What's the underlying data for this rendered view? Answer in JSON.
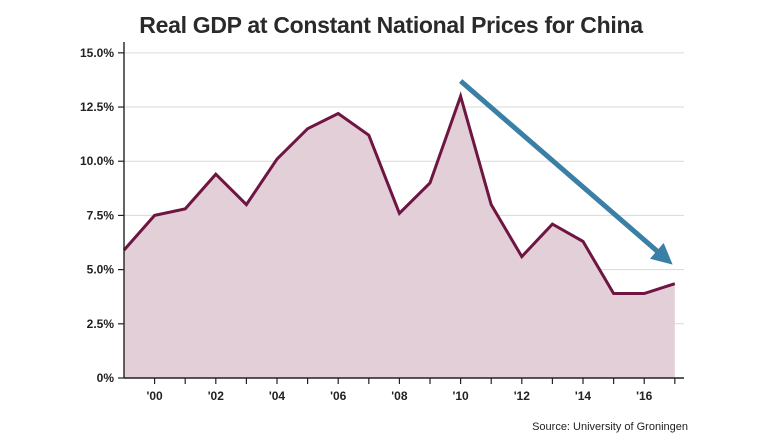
{
  "chart_data": {
    "type": "area",
    "title": "Real GDP at Constant National Prices for China",
    "xlabel": "",
    "ylabel": "",
    "x": [
      1999,
      2000,
      2001,
      2002,
      2003,
      2004,
      2005,
      2006,
      2007,
      2008,
      2009,
      2010,
      2011,
      2012,
      2013,
      2014,
      2015,
      2016,
      2017
    ],
    "series": [
      {
        "values": [
          5.9,
          7.5,
          7.8,
          9.4,
          8.0,
          10.1,
          11.5,
          12.2,
          11.2,
          7.6,
          9.0,
          13.0,
          8.0,
          5.6,
          7.1,
          6.3,
          3.9,
          3.9,
          4.35
        ]
      }
    ],
    "xlim": [
      1999,
      2017.3
    ],
    "ylim": [
      0,
      15.5
    ],
    "yticks": [
      0,
      2.5,
      5.0,
      7.5,
      10.0,
      12.5,
      15.0
    ],
    "ytick_labels": [
      "0%",
      "2.5%",
      "5.0%",
      "7.5%",
      "10.0%",
      "12.5%",
      "15.0%"
    ],
    "xticks": [
      2000,
      2002,
      2004,
      2006,
      2008,
      2010,
      2012,
      2014,
      2016
    ],
    "xtick_labels": [
      "'00",
      "'02",
      "'04",
      "'06",
      "'08",
      "'10",
      "'12",
      "'14",
      "'16"
    ],
    "grid": "horizontal",
    "annotations": [
      {
        "type": "arrow",
        "from": [
          2010,
          13.7
        ],
        "to": [
          2017.1,
          5.1
        ],
        "color": "#3a7fa6"
      }
    ],
    "colors": {
      "line": "#6e1542",
      "fill": "#e3cfd7",
      "grid": "#d9d9d9",
      "arrow": "#3a7fa6"
    },
    "source": "Source: University of Groningen"
  }
}
